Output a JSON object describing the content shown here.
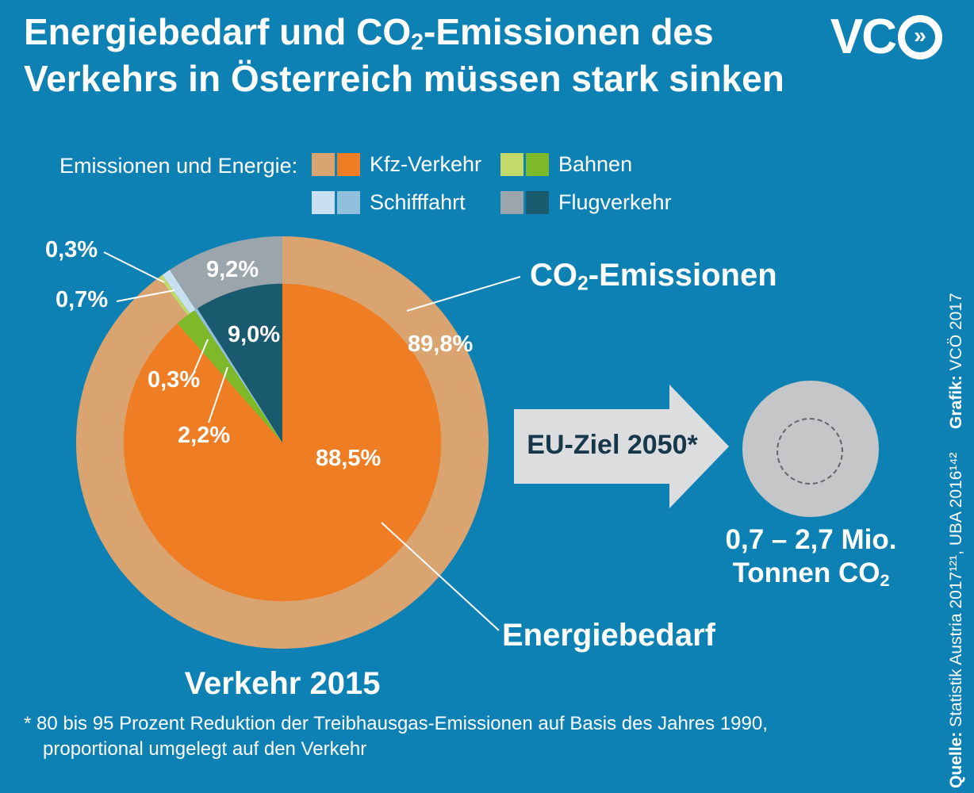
{
  "colors": {
    "background": "#0E81B4",
    "arrow_fill": "#DCDDDE",
    "arrow_text": "#16384A",
    "goal_circle_fill": "#C5C6C7",
    "callout_line": "#FFFFFF"
  },
  "header": {
    "title": {
      "pre": "Energiebedarf und CO",
      "sub": "2",
      "post": "-Emissionen des",
      "line2": "Verkehrs in Österreich müssen stark sinken"
    },
    "logo": {
      "vc": "VC",
      "chevrons": "»"
    }
  },
  "legend": {
    "title": "Emissionen und Energie:",
    "items": [
      {
        "key": "kfz",
        "label": "Kfz-Verkehr",
        "emission_color": "#D9A470",
        "energy_color": "#EE7D23"
      },
      {
        "key": "bahnen",
        "label": "Bahnen",
        "emission_color": "#C3D96A",
        "energy_color": "#7DB928"
      },
      {
        "key": "schifffahrt",
        "label": "Schifffahrt",
        "emission_color": "#C9E0F0",
        "energy_color": "#92BFDC"
      },
      {
        "key": "flugverkehr",
        "label": "Flugverkehr",
        "emission_color": "#9BA6AC",
        "energy_color": "#1A5A6E"
      }
    ]
  },
  "chart_data": {
    "type": "pie",
    "title": "Verkehr 2015",
    "units": "%",
    "start_angle_deg": 0,
    "direction": "clockwise",
    "rings": [
      {
        "key": "co2_emissionen",
        "name": "CO2-Emissionen",
        "radius_frac": 1.0,
        "segments": [
          {
            "label": "Kfz-Verkehr",
            "value": 89.8,
            "display": "89,8%",
            "color": "#D9A470"
          },
          {
            "label": "Bahnen",
            "value": 0.3,
            "display": "0,3%",
            "color": "#C3D96A"
          },
          {
            "label": "Schifffahrt",
            "value": 0.7,
            "display": "0,7%",
            "color": "#C9E0F0"
          },
          {
            "label": "Flugverkehr",
            "value": 9.2,
            "display": "9,2%",
            "color": "#9BA6AC"
          }
        ]
      },
      {
        "key": "energiebedarf",
        "name": "Energiebedarf",
        "radius_frac": 0.77,
        "segments": [
          {
            "label": "Kfz-Verkehr",
            "value": 88.5,
            "display": "88,5%",
            "color": "#EE7D23"
          },
          {
            "label": "Bahnen",
            "value": 2.2,
            "display": "2,2%",
            "color": "#7DB928"
          },
          {
            "label": "Schifffahrt",
            "value": 0.3,
            "display": "0,3%",
            "color": "#92BFDC"
          },
          {
            "label": "Flugverkehr",
            "value": 9.0,
            "display": "9,0%",
            "color": "#1A5A6E"
          }
        ]
      }
    ]
  },
  "callouts": {
    "co2": {
      "pre": "CO",
      "sub": "2",
      "post": "-Emissionen"
    },
    "energie": "Energiebedarf"
  },
  "target": {
    "arrow_label": "EU-Ziel 2050*",
    "result_line1": "0,7 – 2,7 Mio.",
    "result_line2_pre": "Tonnen CO",
    "result_line2_sub": "2"
  },
  "footnote": {
    "line1": "* 80 bis 95 Prozent Reduktion der Treibhausgas-Emissionen auf Basis des Jahres 1990,",
    "line2": "proportional umgelegt auf den Verkehr"
  },
  "source": {
    "quelle_label": "Quelle:",
    "quelle_text": " Statistik Austria 2017¹²¹, UBA 2016¹⁴²",
    "grafik_label": "Grafik:",
    "grafik_text": " VCÖ 2017"
  }
}
